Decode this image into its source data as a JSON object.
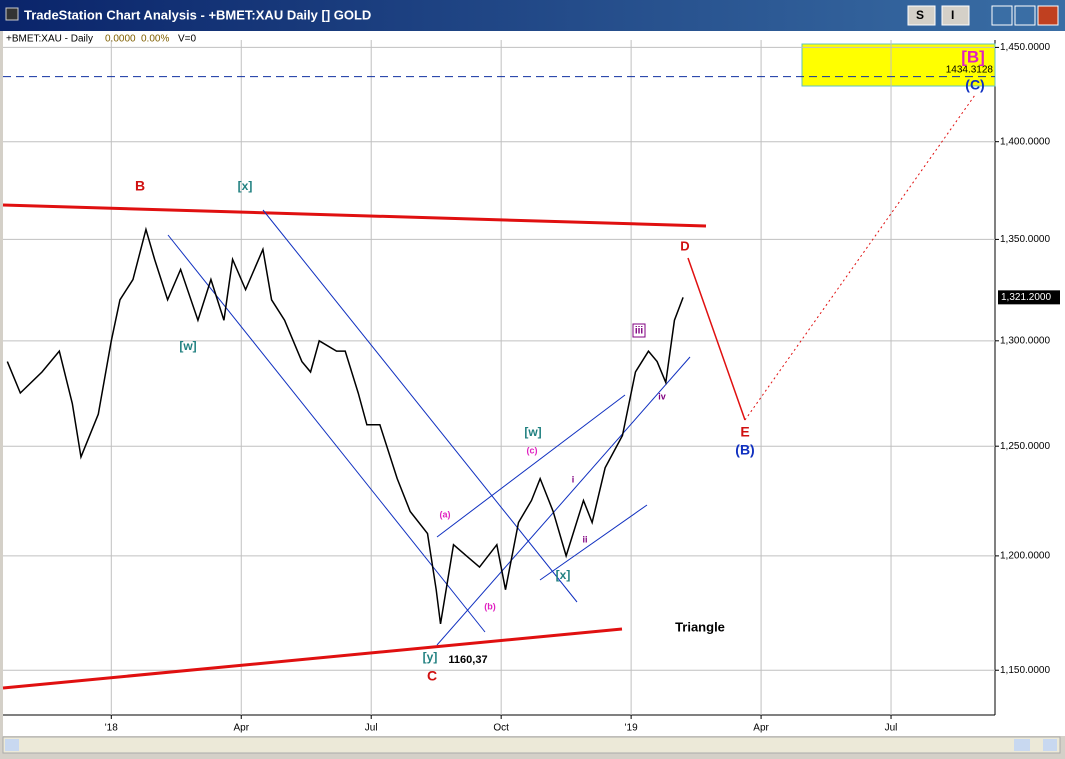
{
  "window": {
    "title": "TradeStation Chart Analysis - +BMET:XAU Daily [] GOLD",
    "buttons": [
      "S",
      "I"
    ]
  },
  "chart_data": {
    "type": "line",
    "symbol_info": [
      "+BMET:XAU - Daily",
      "0.0000",
      "0.00%",
      "V=0"
    ],
    "log_scale": true,
    "grid": true,
    "color": "#000000",
    "x": [
      -2.4,
      -2.1,
      -1.6,
      -1.2,
      -0.9,
      -0.7,
      -0.3,
      0,
      0.2,
      0.5,
      0.8,
      1.0,
      1.3,
      1.6,
      2.0,
      2.3,
      2.6,
      2.8,
      3.1,
      3.5,
      3.7,
      4.0,
      4.4,
      4.6,
      4.8,
      5.2,
      5.4,
      5.7,
      5.9,
      6.2,
      6.6,
      6.9,
      7.3,
      7.5,
      7.6,
      7.9,
      8.2,
      8.5,
      8.9,
      9.1,
      9.4,
      9.7,
      9.9,
      10.2,
      10.5,
      10.9,
      11.1,
      11.4,
      11.8,
      12.1,
      12.4,
      12.6,
      12.8,
      13.0,
      13.2
    ],
    "values": [
      1290,
      1275,
      1285,
      1295,
      1270,
      1245,
      1265,
      1300,
      1320,
      1330,
      1355,
      1340,
      1320,
      1335,
      1310,
      1330,
      1310,
      1340,
      1325,
      1345,
      1320,
      1310,
      1290,
      1285,
      1300,
      1295,
      1295,
      1275,
      1260,
      1260,
      1235,
      1220,
      1210,
      1185,
      1170,
      1205,
      1200,
      1195,
      1205,
      1185,
      1215,
      1225,
      1235,
      1220,
      1200,
      1225,
      1215,
      1240,
      1255,
      1285,
      1295,
      1290,
      1280,
      1310,
      1321.2
    ],
    "xlim": [
      -2.5,
      20.4
    ],
    "xticks": [
      {
        "value": 0,
        "label": "'18"
      },
      {
        "value": 3,
        "label": "Apr"
      },
      {
        "value": 6,
        "label": "Jul"
      },
      {
        "value": 9,
        "label": "Oct"
      },
      {
        "value": 12,
        "label": "'19"
      },
      {
        "value": 15,
        "label": "Apr"
      },
      {
        "value": 18,
        "label": "Jul"
      }
    ],
    "ylim": [
      1131,
      1454
    ],
    "yticks": [
      {
        "value": 1150,
        "label": "1,150.0000"
      },
      {
        "value": 1200,
        "label": "1,200.0000"
      },
      {
        "value": 1250,
        "label": "1,250.0000"
      },
      {
        "value": 1300,
        "label": "1,300.0000"
      },
      {
        "value": 1350,
        "label": "1,350.0000"
      },
      {
        "value": 1400,
        "label": "1,400.0000"
      },
      {
        "value": 1450,
        "label": "1,450.0000"
      }
    ],
    "last_value": {
      "value": 1321.2,
      "label": "1,321.2000"
    },
    "level": {
      "value": 1434.3128,
      "label": "1434.3128"
    },
    "annotations": [
      {
        "text": "B",
        "color": "#d01010"
      },
      {
        "text": "[x]",
        "color": "#208080"
      },
      {
        "text": "[w]",
        "color": "#208080"
      },
      {
        "text": "(a)",
        "color": "#e020c0"
      },
      {
        "text": "(b)",
        "color": "#e020c0"
      },
      {
        "text": "(c)",
        "color": "#e020c0"
      },
      {
        "text": "[w]",
        "color": "#208080"
      },
      {
        "text": "[x]",
        "color": "#208080"
      },
      {
        "text": "[y]",
        "color": "#208080"
      },
      {
        "text": "C",
        "color": "#d01010"
      },
      {
        "text": "1160,37",
        "color": "#000000"
      },
      {
        "text": "Triangle",
        "color": "#000000"
      },
      {
        "text": "D",
        "color": "#d01010"
      },
      {
        "text": "E",
        "color": "#d01010"
      },
      {
        "text": "(B)",
        "color": "#1030c0"
      },
      {
        "text": "i",
        "color": "#800080"
      },
      {
        "text": "ii",
        "color": "#800080"
      },
      {
        "text": "iii",
        "color": "#800080"
      },
      {
        "text": "iv",
        "color": "#800080"
      },
      {
        "text": "[B]",
        "color": "#e020c0"
      },
      {
        "text": "(C)",
        "color": "#1030c0"
      }
    ]
  }
}
